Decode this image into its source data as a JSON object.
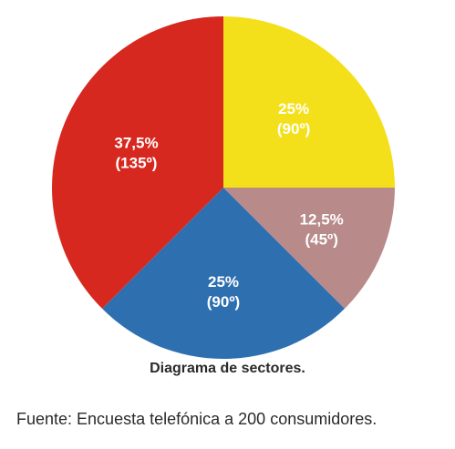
{
  "chart_data": {
    "type": "pie",
    "title": "Diagrama de sectores.",
    "slices": [
      {
        "percent_label": "25%",
        "degrees_label": "(90º)",
        "value": 25,
        "degrees": 90,
        "color": "#f4e01a"
      },
      {
        "percent_label": "12,5%",
        "degrees_label": "(45º)",
        "value": 12.5,
        "degrees": 45,
        "color": "#b88a8a"
      },
      {
        "percent_label": "25%",
        "degrees_label": "(90º)",
        "value": 25,
        "degrees": 90,
        "color": "#2e6fb0"
      },
      {
        "percent_label": "37,5%",
        "degrees_label": "(135º)",
        "value": 37.5,
        "degrees": 135,
        "color": "#d6281f"
      }
    ]
  },
  "caption": "Diagrama de sectores.",
  "source": "Fuente: Encuesta telefónica a 200 consumidores."
}
